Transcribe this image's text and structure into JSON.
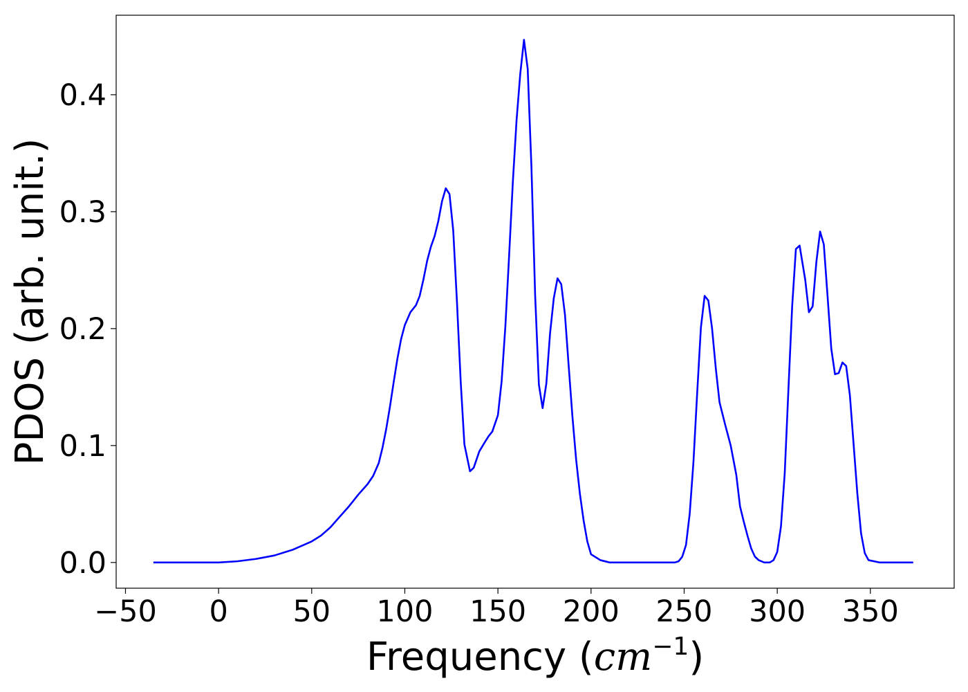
{
  "chart_data": {
    "type": "line",
    "title": "",
    "xlabel": "Frequency (cm⁻¹)",
    "xlabel_parts": {
      "prefix": "Frequency (",
      "math": "cm",
      "sup": "−1",
      "suffix": ")"
    },
    "ylabel": "PDOS (arb. unit.)",
    "xlim": [
      -55,
      395
    ],
    "ylim": [
      -0.022,
      0.468
    ],
    "xticks": [
      -50,
      0,
      50,
      100,
      150,
      200,
      250,
      300,
      350
    ],
    "xtick_labels": [
      "−50",
      "0",
      "50",
      "100",
      "150",
      "200",
      "250",
      "300",
      "350"
    ],
    "yticks": [
      0.0,
      0.1,
      0.2,
      0.3,
      0.4
    ],
    "ytick_labels": [
      "0.0",
      "0.1",
      "0.2",
      "0.3",
      "0.4"
    ],
    "grid": false,
    "series": [
      {
        "color": "#0000ff",
        "x": [
          -35,
          0,
          10,
          20,
          30,
          40,
          50,
          55,
          60,
          65,
          70,
          75,
          80,
          83,
          86,
          88,
          90,
          92,
          94,
          96,
          98,
          100,
          103,
          106,
          108,
          110,
          112,
          114,
          116,
          118,
          120,
          122,
          124,
          126,
          128,
          130,
          132,
          135,
          137,
          140,
          143,
          145,
          147,
          150,
          152,
          154,
          156,
          158,
          160,
          162,
          164,
          166,
          168,
          170,
          172,
          174,
          176,
          178,
          180,
          182,
          184,
          186,
          188,
          190,
          192,
          194,
          196,
          198,
          200,
          205,
          210,
          240,
          245,
          247,
          249,
          251,
          253,
          255,
          257,
          259,
          261,
          263,
          265,
          267,
          269,
          272,
          275,
          278,
          280,
          282,
          284,
          286,
          288,
          290,
          293,
          296,
          298,
          300,
          302,
          304,
          306,
          308,
          310,
          312,
          315,
          317,
          319,
          321,
          323,
          325,
          327,
          329,
          331,
          333,
          335,
          337,
          339,
          341,
          343,
          345,
          347,
          349,
          355,
          373
        ],
        "y": [
          0.0,
          0.0,
          0.001,
          0.003,
          0.006,
          0.011,
          0.018,
          0.023,
          0.03,
          0.039,
          0.048,
          0.058,
          0.067,
          0.074,
          0.085,
          0.098,
          0.114,
          0.133,
          0.154,
          0.174,
          0.191,
          0.203,
          0.214,
          0.22,
          0.228,
          0.242,
          0.258,
          0.27,
          0.279,
          0.292,
          0.309,
          0.32,
          0.315,
          0.284,
          0.223,
          0.155,
          0.101,
          0.078,
          0.081,
          0.095,
          0.103,
          0.108,
          0.112,
          0.126,
          0.155,
          0.202,
          0.262,
          0.325,
          0.378,
          0.418,
          0.447,
          0.422,
          0.338,
          0.228,
          0.152,
          0.132,
          0.153,
          0.196,
          0.226,
          0.243,
          0.238,
          0.212,
          0.168,
          0.125,
          0.088,
          0.059,
          0.036,
          0.018,
          0.007,
          0.002,
          0.0,
          0.0,
          0.0,
          0.001,
          0.005,
          0.015,
          0.042,
          0.086,
          0.145,
          0.201,
          0.228,
          0.224,
          0.2,
          0.166,
          0.137,
          0.118,
          0.1,
          0.075,
          0.048,
          0.035,
          0.023,
          0.012,
          0.005,
          0.002,
          0.0,
          0.0,
          0.002,
          0.009,
          0.031,
          0.076,
          0.148,
          0.219,
          0.268,
          0.271,
          0.242,
          0.214,
          0.219,
          0.257,
          0.283,
          0.272,
          0.228,
          0.183,
          0.161,
          0.162,
          0.171,
          0.168,
          0.143,
          0.101,
          0.059,
          0.025,
          0.008,
          0.002,
          0.0,
          0.0
        ]
      }
    ]
  }
}
